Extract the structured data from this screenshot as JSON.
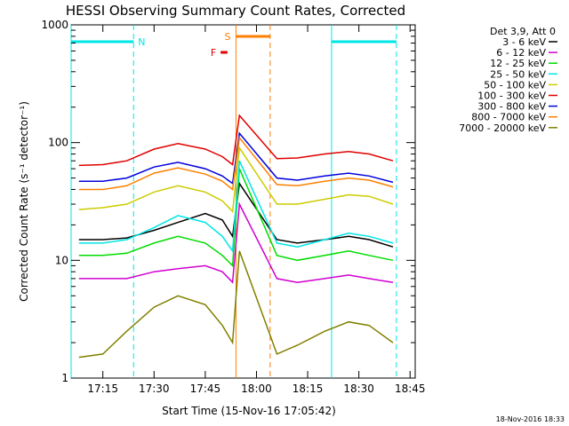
{
  "chart_data": {
    "type": "line",
    "title": "HESSI Observing Summary Count Rates, Corrected",
    "xlabel": "Start Time (15-Nov-16 17:05:42)",
    "ylabel": "Corrected Count Rate (s⁻¹ detector⁻¹)",
    "x_start": "17:05:42",
    "x_range": [
      "17:05:42",
      "18:46:30"
    ],
    "ylim": [
      1,
      1000
    ],
    "yscale": "log",
    "x_ticks": [
      "17:15",
      "17:30",
      "17:45",
      "18:00",
      "18:15",
      "18:30",
      "18:45"
    ],
    "y_ticks": [
      "1",
      "10",
      "100",
      "1000"
    ],
    "legend_header": "Det 3,9, Att 0",
    "legend_position": "right",
    "timestamp": "18-Nov-2016 18:33",
    "data_gaps": [
      [
        "17:59:00",
        "18:06:00"
      ]
    ],
    "markers": [
      {
        "label": "N",
        "color": "#00e5e5",
        "type": "night",
        "start": "17:05:42",
        "end": "17:24:00"
      },
      {
        "label": "",
        "color": "#00e5e5",
        "type": "night",
        "start": "18:22:00",
        "end": "18:41:00"
      },
      {
        "label": "F",
        "color": "#e00000",
        "type": "flare",
        "start": "17:49:30",
        "end": "17:51:30"
      },
      {
        "label": "S",
        "color": "#ff7f00",
        "type": "saa",
        "start": "17:54:00",
        "end": "18:04:00"
      }
    ],
    "x_times": [
      "17:08",
      "17:15",
      "17:22",
      "17:30",
      "17:37",
      "17:45",
      "17:50",
      "17:53",
      "17:55",
      "18:06",
      "18:12",
      "18:20",
      "18:27",
      "18:33",
      "18:40"
    ],
    "series": [
      {
        "name": "3 - 6 keV",
        "color": "#000000",
        "values": [
          15,
          15,
          15.5,
          18,
          21,
          25,
          22,
          16,
          45,
          15,
          14,
          15,
          16,
          15,
          13
        ]
      },
      {
        "name": "6 - 12 keV",
        "color": "#d000d0",
        "values": [
          7,
          7,
          7,
          8,
          8.5,
          9,
          8,
          6.5,
          30,
          7,
          6.5,
          7,
          7.5,
          7,
          6.5
        ]
      },
      {
        "name": "12 - 25 keV",
        "color": "#00dd00",
        "values": [
          11,
          11,
          11.5,
          14,
          16,
          14,
          11,
          9,
          60,
          11,
          10,
          11,
          12,
          11,
          10
        ]
      },
      {
        "name": "25 - 50 keV",
        "color": "#00e5e5",
        "values": [
          14,
          14,
          15,
          19,
          24,
          21,
          16,
          12,
          70,
          14,
          13,
          15,
          17,
          16,
          14
        ]
      },
      {
        "name": "50 - 100 keV",
        "color": "#cccc00",
        "values": [
          27,
          28,
          30,
          38,
          43,
          38,
          32,
          26,
          90,
          30,
          30,
          33,
          36,
          35,
          30
        ]
      },
      {
        "name": "100 - 300 keV",
        "color": "#e00000",
        "values": [
          64,
          65,
          70,
          88,
          98,
          88,
          76,
          65,
          170,
          73,
          74,
          80,
          84,
          80,
          70
        ]
      },
      {
        "name": "300 - 800 keV",
        "color": "#0000dd",
        "values": [
          47,
          47,
          50,
          62,
          68,
          60,
          52,
          45,
          120,
          50,
          48,
          52,
          55,
          52,
          46
        ]
      },
      {
        "name": "800 - 7000 keV",
        "color": "#ff7f00",
        "values": [
          40,
          40,
          43,
          55,
          61,
          54,
          47,
          40,
          110,
          44,
          43,
          47,
          50,
          48,
          42
        ]
      },
      {
        "name": "7000 - 20000 keV",
        "color": "#808000",
        "values": [
          1.5,
          1.6,
          2.5,
          4.0,
          5.0,
          4.2,
          2.8,
          2.0,
          12,
          1.6,
          1.9,
          2.5,
          3.0,
          2.8,
          2.0
        ]
      }
    ]
  }
}
